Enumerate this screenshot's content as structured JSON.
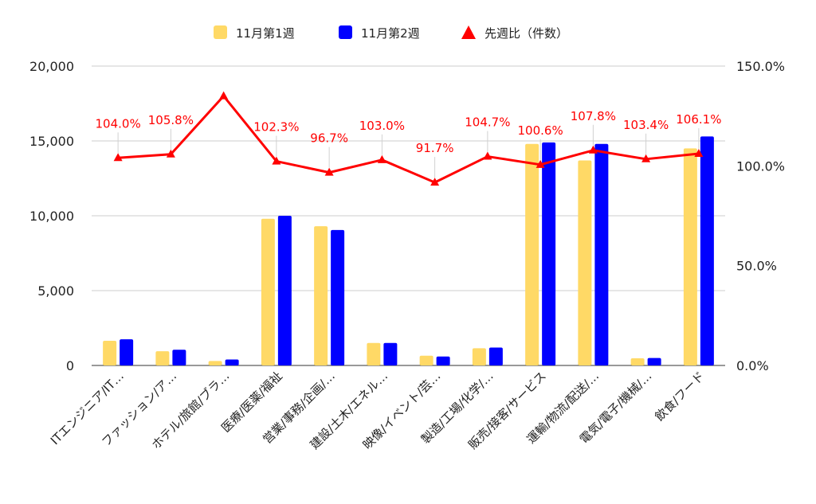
{
  "chart_data": {
    "type": "bar",
    "categories": [
      "ITエンジニア/IT…",
      "ファッション/ア…",
      "ホテル/旅館/ブラ…",
      "医療/医薬/福祉",
      "営業/事務/企画/…",
      "建設/土木/エネル…",
      "映像/イベント/芸…",
      "製造/工場/化学/…",
      "販売/接客/サービス",
      "運輸/物流/配送/…",
      "電気/電子/機械/…",
      "飲食/フード"
    ],
    "series": [
      {
        "name": "11月第1週",
        "axis": "left",
        "kind": "bar",
        "color": "#ffd966",
        "values": [
          1650,
          950,
          300,
          9800,
          9300,
          1500,
          650,
          1150,
          14800,
          13700,
          480,
          14500
        ]
      },
      {
        "name": "11月第2週",
        "axis": "left",
        "kind": "bar",
        "color": "#0000ff",
        "values": [
          1750,
          1050,
          400,
          10000,
          9050,
          1500,
          600,
          1200,
          14900,
          14800,
          500,
          15300
        ]
      },
      {
        "name": "先週比（件数）",
        "axis": "right",
        "kind": "line",
        "color": "#ff0000",
        "values": [
          104.0,
          105.8,
          135.0,
          102.3,
          96.7,
          103.0,
          91.7,
          104.7,
          100.6,
          107.8,
          103.4,
          106.1
        ],
        "labels": [
          "104.0%",
          "105.8%",
          null,
          "102.3%",
          "96.7%",
          "103.0%",
          "91.7%",
          "104.7%",
          "100.6%",
          "107.8%",
          "103.4%",
          "106.1%"
        ]
      }
    ],
    "y_left": {
      "min": 0,
      "max": 20000,
      "ticks": [
        "0",
        "5,000",
        "10,000",
        "15,000",
        "20,000"
      ]
    },
    "y_right": {
      "min": 0,
      "max": 150,
      "ticks": [
        "0.0%",
        "50.0%",
        "100.0%",
        "150.0%"
      ]
    },
    "grid": true,
    "legend_position": "top-center"
  }
}
